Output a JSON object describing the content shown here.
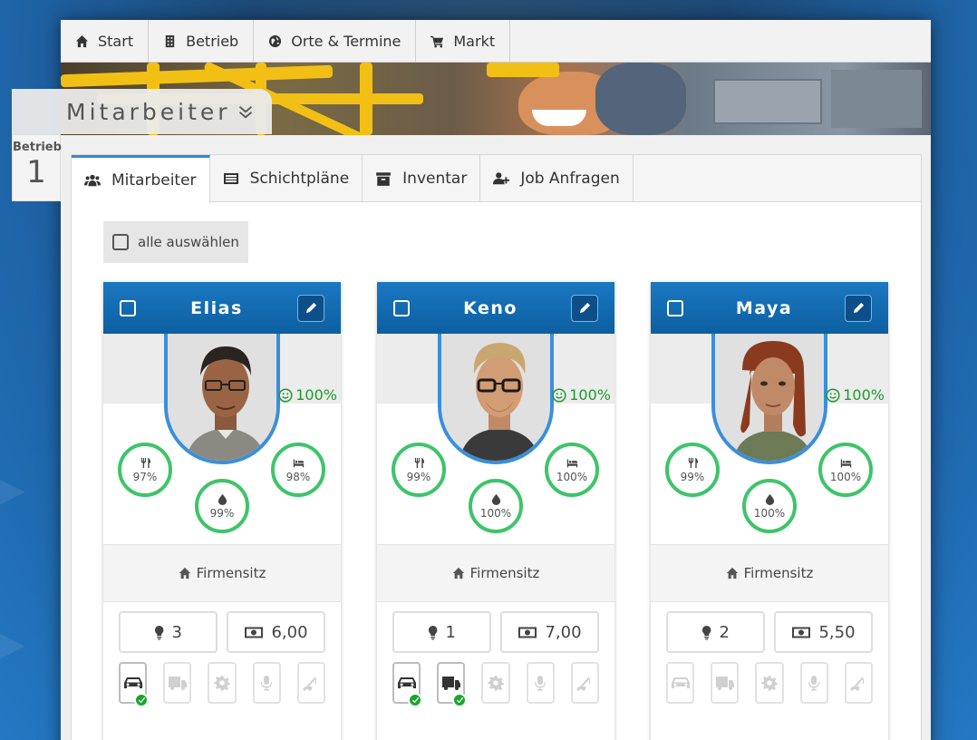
{
  "topnav": [
    {
      "label": "Start",
      "icon": "home-icon"
    },
    {
      "label": "Betrieb",
      "icon": "building-icon"
    },
    {
      "label": "Orte & Termine",
      "icon": "globe-icon"
    },
    {
      "label": "Markt",
      "icon": "cart-icon"
    }
  ],
  "section": {
    "title": "Mitarbeiter",
    "toggle_icon": "chevron-double-down-icon"
  },
  "company": {
    "label": "Betrieb",
    "number": "1"
  },
  "tabs": [
    {
      "label": "Mitarbeiter",
      "icon": "users-icon",
      "active": true
    },
    {
      "label": "Schichtpläne",
      "icon": "list-icon",
      "active": false
    },
    {
      "label": "Inventar",
      "icon": "archive-icon",
      "active": false
    },
    {
      "label": "Job Anfragen",
      "icon": "user-plus-icon",
      "active": false
    }
  ],
  "select_all": {
    "label": "alle auswählen"
  },
  "employees": [
    {
      "name": "Elias",
      "mood": "100%",
      "food": "97%",
      "water": "99%",
      "sleep": "98%",
      "location": "Firmensitz",
      "ideas": "3",
      "wage": "6,00",
      "licenses": [
        true,
        false,
        false,
        false,
        false
      ]
    },
    {
      "name": "Keno",
      "mood": "100%",
      "food": "99%",
      "water": "100%",
      "sleep": "100%",
      "location": "Firmensitz",
      "ideas": "1",
      "wage": "7,00",
      "licenses": [
        true,
        true,
        false,
        false,
        false
      ]
    },
    {
      "name": "Maya",
      "mood": "100%",
      "food": "99%",
      "water": "100%",
      "sleep": "100%",
      "location": "Firmensitz",
      "ideas": "2",
      "wage": "5,50",
      "licenses": [
        false,
        false,
        false,
        false,
        false
      ]
    }
  ],
  "license_icons": [
    "car-icon",
    "truck-icon",
    "gear-icon",
    "microphone-icon",
    "crane-icon"
  ],
  "colors": {
    "header_blue": "#0d5fa0",
    "stat_green": "#3ec46a",
    "mood_green": "#1e9b2e",
    "check_green": "#1ba72e",
    "avatar_ring": "#3a8fdc"
  }
}
